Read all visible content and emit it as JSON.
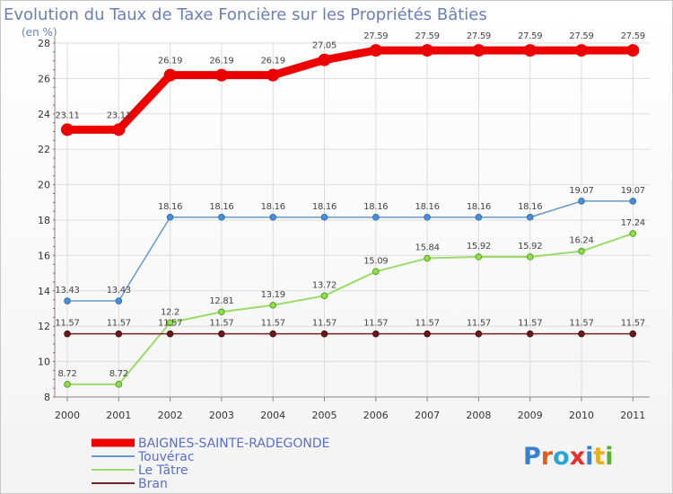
{
  "chart_data": {
    "type": "line",
    "title": "Evolution du Taux de Taxe Foncière sur les Propriétés Bâties",
    "ylabel": "(en %)",
    "xlabel": "",
    "x": [
      "2000",
      "2001",
      "2002",
      "2003",
      "2004",
      "2005",
      "2006",
      "2007",
      "2008",
      "2009",
      "2010",
      "2011"
    ],
    "ylim": [
      8,
      28
    ],
    "yticks": [
      8,
      10,
      12,
      14,
      16,
      18,
      20,
      22,
      24,
      26,
      28
    ],
    "grid": true,
    "legend_position": "bottom-left",
    "series": [
      {
        "name": "BAIGNES-SAINTE-RADEGONDE",
        "color": "#ee0000",
        "values": [
          23.11,
          23.11,
          26.19,
          26.19,
          26.19,
          27.05,
          27.59,
          27.59,
          27.59,
          27.59,
          27.59,
          27.59
        ],
        "labels": [
          "23.11",
          "23.11",
          "26.19",
          "26.19",
          "26.19",
          "27.05",
          "27.59",
          "27.59",
          "27.59",
          "27.59",
          "27.59",
          "27.59"
        ]
      },
      {
        "name": "Touvérac",
        "color": "#6699cc",
        "values": [
          13.43,
          13.43,
          18.16,
          18.16,
          18.16,
          18.16,
          18.16,
          18.16,
          18.16,
          18.16,
          19.07,
          19.07
        ],
        "labels": [
          "13.43",
          "13.43",
          "18.16",
          "18.16",
          "18.16",
          "18.16",
          "18.16",
          "18.16",
          "18.16",
          "18.16",
          "19.07",
          "19.07"
        ]
      },
      {
        "name": "Le Tâtre",
        "color": "#99dd66",
        "values": [
          8.72,
          8.72,
          12.2,
          12.81,
          13.19,
          13.72,
          15.09,
          15.84,
          15.92,
          15.92,
          16.24,
          17.24
        ],
        "labels": [
          "8.72",
          "8.72",
          "12.2",
          "12.81",
          "13.19",
          "13.72",
          "15.09",
          "15.84",
          "15.92",
          "15.92",
          "16.24",
          "17.24"
        ]
      },
      {
        "name": "Bran",
        "color": "#772222",
        "values": [
          11.57,
          11.57,
          11.57,
          11.57,
          11.57,
          11.57,
          11.57,
          11.57,
          11.57,
          11.57,
          11.57,
          11.57
        ],
        "labels": [
          "11.57",
          "11.57",
          "11.57",
          "11.57",
          "11.57",
          "11.57",
          "11.57",
          "11.57",
          "11.57",
          "11.57",
          "11.57",
          "11.57"
        ]
      }
    ]
  },
  "logo": {
    "text": "Proxiti",
    "letters": [
      "P",
      "r",
      "o",
      "x",
      "i",
      "t",
      "i"
    ],
    "colors": [
      "#3a7fd0",
      "#e85a1a",
      "#2aa6d6",
      "#e8302a",
      "#3a7fd0",
      "#e8b020",
      "#5ab030"
    ]
  }
}
